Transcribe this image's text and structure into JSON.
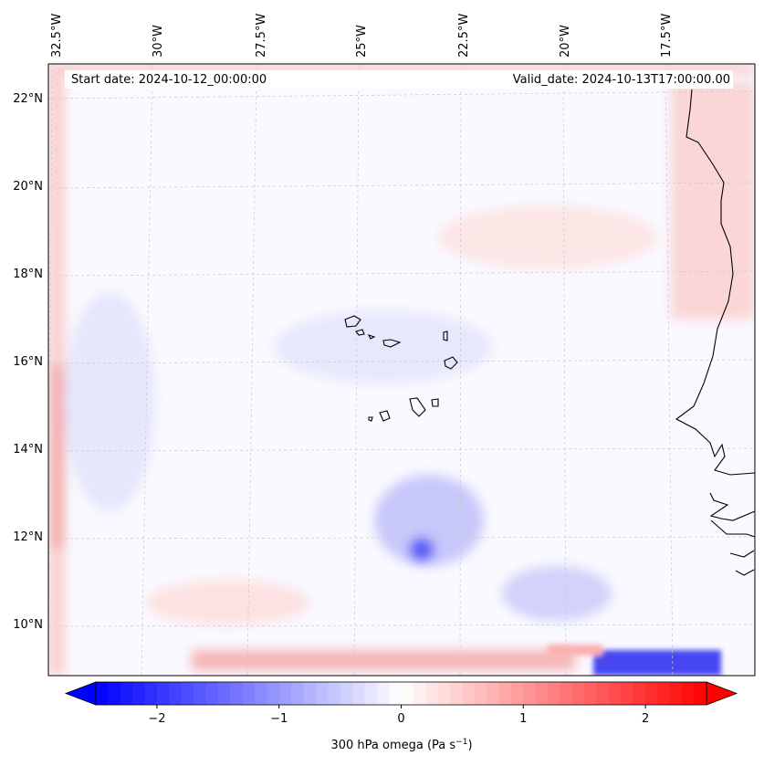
{
  "header": {
    "start_date": "Start date: 2024-10-12_00:00:00",
    "valid_date": "Valid_date: 2024-10-13T17:00:00.00"
  },
  "map": {
    "lon_labels": [
      "32.5°W",
      "30°W",
      "27.5°W",
      "25°W",
      "22.5°W",
      "20°W",
      "17.5°W"
    ],
    "lat_labels": [
      "22°N",
      "20°N",
      "18°N",
      "16°N",
      "14°N",
      "12°N",
      "10°N"
    ],
    "extent": {
      "lon_min": -33.0,
      "lon_max": -15.5,
      "lat_min": 9.0,
      "lat_max": 22.8
    },
    "gridlines": true,
    "field": "300 hPa omega",
    "colormap": "bwr",
    "features": [
      "Cape Verde islands",
      "West African coastline (Senegal, Gambia, Guinea-Bissau)"
    ]
  },
  "colorbar": {
    "ticks": [
      "−2",
      "−1",
      "0",
      "1",
      "2"
    ],
    "tick_values": [
      -2,
      -1,
      0,
      1,
      2
    ],
    "range": [
      -2.5,
      2.5
    ],
    "extend": "both",
    "label_main": "300 hPa omega (Pa s",
    "label_exp": "−1",
    "label_close": ")",
    "colors": {
      "min": "#0000ff",
      "mid": "#ffffff",
      "max": "#ff0000"
    }
  }
}
